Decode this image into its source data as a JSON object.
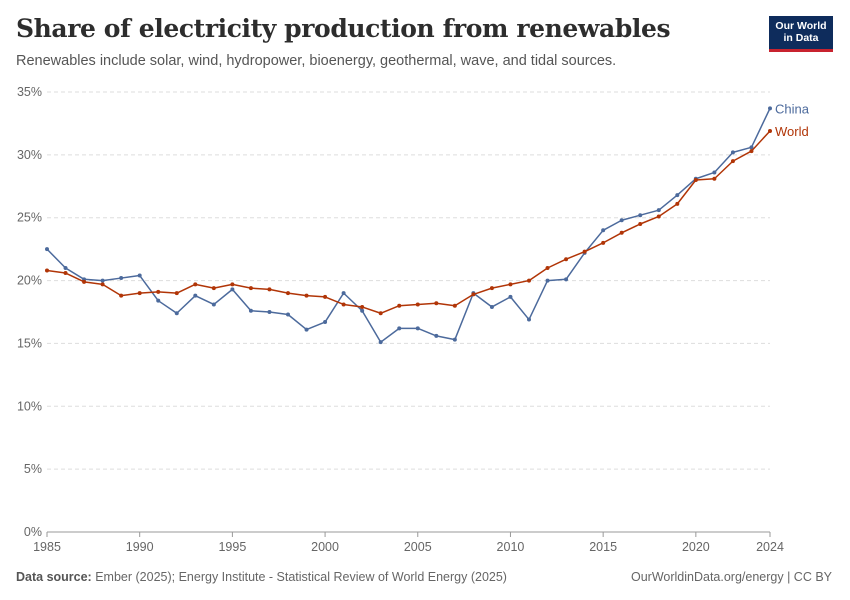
{
  "header": {
    "title": "Share of electricity production from renewables",
    "subtitle": "Renewables include solar, wind, hydropower, bioenergy, geothermal, wave, and tidal sources."
  },
  "logo": {
    "line1": "Our World",
    "line2": "in Data"
  },
  "footer": {
    "source_label": "Data source:",
    "source_text": "Ember (2025); Energy Institute - Statistical Review of World Energy (2025)",
    "credit": "OurWorldinData.org/energy | CC BY"
  },
  "chart_data": {
    "type": "line",
    "title": "Share of electricity production from renewables",
    "xlim": [
      1985,
      2024
    ],
    "ylim": [
      0,
      35
    ],
    "x_ticks": [
      1985,
      1990,
      1995,
      2000,
      2005,
      2010,
      2015,
      2020,
      2024
    ],
    "y_ticks": [
      0,
      5,
      10,
      15,
      20,
      25,
      30,
      35
    ],
    "y_tick_labels": [
      "0%",
      "5%",
      "10%",
      "15%",
      "20%",
      "25%",
      "30%",
      "35%"
    ],
    "grid": "horizontal dashed",
    "legend": "line-end labels",
    "x": [
      1985,
      1986,
      1987,
      1988,
      1989,
      1990,
      1991,
      1992,
      1993,
      1994,
      1995,
      1996,
      1997,
      1998,
      1999,
      2000,
      2001,
      2002,
      2003,
      2004,
      2005,
      2006,
      2007,
      2008,
      2009,
      2010,
      2011,
      2012,
      2013,
      2014,
      2015,
      2016,
      2017,
      2018,
      2019,
      2020,
      2021,
      2022,
      2023,
      2024
    ],
    "series": [
      {
        "name": "China",
        "color": "#4c6a9c",
        "values": [
          22.5,
          21.0,
          20.1,
          20.0,
          20.2,
          20.4,
          18.4,
          17.4,
          18.8,
          18.1,
          19.3,
          17.6,
          17.5,
          17.3,
          16.1,
          16.7,
          19.0,
          17.6,
          15.1,
          16.2,
          16.2,
          15.6,
          15.3,
          19.0,
          17.9,
          18.7,
          16.9,
          20.0,
          20.1,
          22.2,
          24.0,
          24.8,
          25.2,
          25.6,
          26.8,
          28.1,
          28.6,
          30.2,
          30.6,
          33.7
        ]
      },
      {
        "name": "World",
        "color": "#b13507",
        "values": [
          20.8,
          20.6,
          19.9,
          19.7,
          18.8,
          19.0,
          19.1,
          19.0,
          19.7,
          19.4,
          19.7,
          19.4,
          19.3,
          19.0,
          18.8,
          18.7,
          18.1,
          17.9,
          17.4,
          18.0,
          18.1,
          18.2,
          18.0,
          18.9,
          19.4,
          19.7,
          20.0,
          21.0,
          21.7,
          22.3,
          23.0,
          23.8,
          24.5,
          25.1,
          26.1,
          28.0,
          28.1,
          29.5,
          30.3,
          31.9
        ]
      }
    ]
  }
}
